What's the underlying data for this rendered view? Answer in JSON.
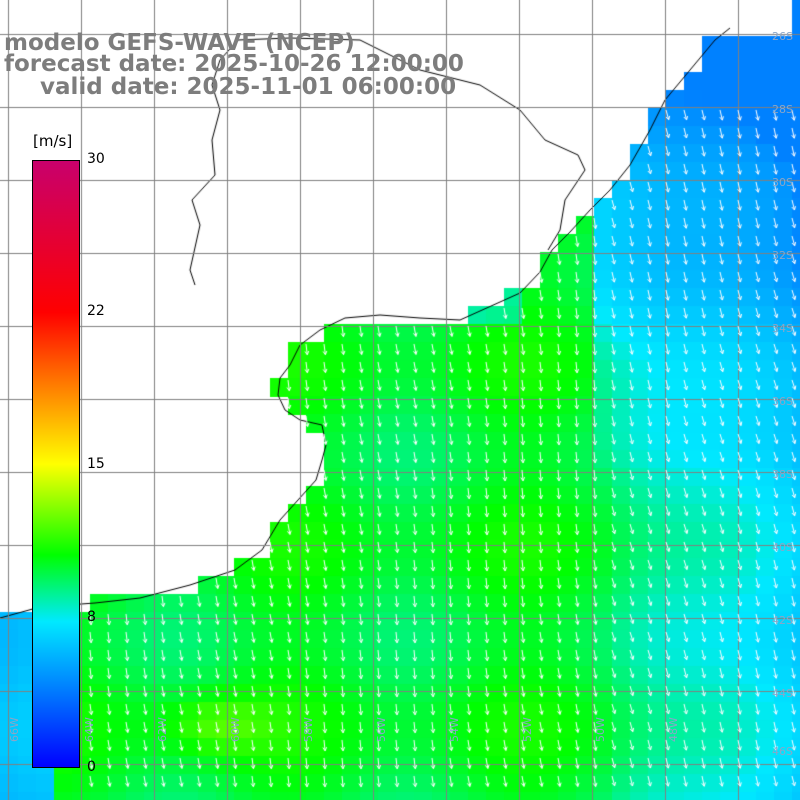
{
  "title": {
    "line1": "modelo GEFS-WAVE (NCEP)",
    "line2": "forecast date: 2025-10-26 12:00:00",
    "line3": "valid date: 2025-11-01 06:00:00"
  },
  "colorbar": {
    "unit": "[m/s]",
    "ticks": [
      "30",
      "22",
      "15",
      "8",
      "0"
    ],
    "tick_values": [
      30,
      22,
      15,
      8,
      0
    ],
    "colors": [
      "#0000ff",
      "#0093ff",
      "#00e9ff",
      "#00ff00",
      "#ffff00",
      "#ff6800",
      "#ff0000",
      "#c8006c"
    ]
  },
  "map": {
    "lon_labels": [
      "66W",
      "64W",
      "62W",
      "60W",
      "58W",
      "56W",
      "54W",
      "52W",
      "50W",
      "48W"
    ],
    "lat_labels": [
      "26S",
      "28S",
      "30S",
      "32S",
      "34S",
      "36S",
      "38S",
      "40S",
      "42S",
      "44S",
      "46S"
    ],
    "land_color": "#ffffff",
    "grid_color": "#808080",
    "arrow_color": "#ffffff",
    "wind_speed_range_ms": [
      4,
      13
    ]
  }
}
